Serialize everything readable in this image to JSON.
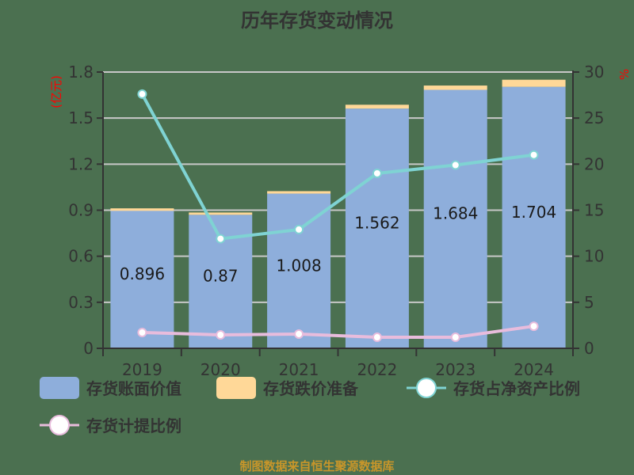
{
  "title": "历年存货变动情况",
  "footer": "制图数据来自恒生聚源数据库",
  "colors": {
    "background": "#4b7050",
    "book_value": "#8eaedb",
    "impairment": "#ffd898",
    "net_asset_ratio": "#7fd3d3",
    "provision_ratio": "#e8bcdc",
    "axis": "#333333",
    "grid": "#c8c8c8",
    "unit_label": "#ff0000",
    "footer": "#c8962a"
  },
  "chart_data": {
    "type": "bar",
    "title": "历年存货变动情况",
    "categories": [
      "2019",
      "2020",
      "2021",
      "2022",
      "2023",
      "2024"
    ],
    "left_axis": {
      "label": "(亿元)",
      "ticks": [
        "0",
        "0.3",
        "0.6",
        "0.9",
        "1.2",
        "1.5",
        "1.8"
      ],
      "ylim": [
        0,
        1.8
      ]
    },
    "right_axis": {
      "label": "%",
      "ticks": [
        "0",
        "5",
        "10",
        "15",
        "20",
        "25",
        "30"
      ],
      "ylim": [
        0,
        30
      ]
    },
    "grid": true,
    "legend_position": "bottom",
    "series": [
      {
        "name": "存货账面价值",
        "type": "bar",
        "stack": "inv",
        "axis": "left",
        "values": [
          0.896,
          0.87,
          1.008,
          1.562,
          1.684,
          1.704
        ],
        "labels": [
          "0.896",
          "0.87",
          "1.008",
          "1.562",
          "1.684",
          "1.704"
        ]
      },
      {
        "name": "存货跌价准备",
        "type": "bar",
        "stack": "inv",
        "axis": "left",
        "values": [
          0.016,
          0.015,
          0.016,
          0.025,
          0.028,
          0.046
        ]
      },
      {
        "name": "存货占净资产比例",
        "type": "line",
        "axis": "right",
        "values": [
          27.6,
          11.9,
          12.9,
          19.0,
          19.9,
          21.0
        ]
      },
      {
        "name": "存货计提比例",
        "type": "line",
        "axis": "right",
        "values": [
          1.72,
          1.46,
          1.55,
          1.2,
          1.2,
          2.4
        ]
      }
    ]
  },
  "legend": [
    {
      "label": "存货账面价值",
      "kind": "rect",
      "color": "#8eaedb"
    },
    {
      "label": "存货跌价准备",
      "kind": "rect",
      "color": "#ffd898"
    },
    {
      "label": "存货占净资产比例",
      "kind": "line",
      "color": "#7fd3d3"
    },
    {
      "label": "存货计提比例",
      "kind": "line",
      "color": "#e8bcdc"
    }
  ]
}
